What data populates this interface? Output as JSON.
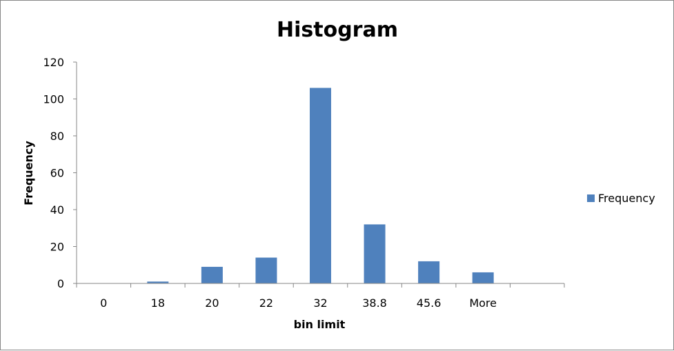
{
  "chart_data": {
    "type": "bar",
    "title": "Histogram",
    "xlabel": "bin limit",
    "ylabel": "Frequency",
    "categories": [
      "0",
      "18",
      "20",
      "22",
      "32",
      "38.8",
      "45.6",
      "More"
    ],
    "series": [
      {
        "name": "Frequency",
        "values": [
          0,
          1,
          9,
          14,
          106,
          32,
          12,
          6
        ],
        "color": "#4f81bd"
      }
    ],
    "ylim": [
      0,
      120
    ],
    "yticks": [
      "0",
      "20",
      "40",
      "60",
      "80",
      "100",
      "120"
    ],
    "grid": false,
    "legend": "right"
  }
}
